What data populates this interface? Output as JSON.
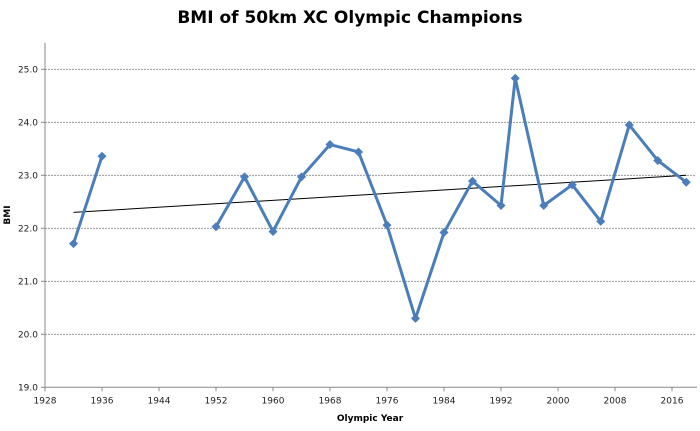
{
  "chart_data": {
    "type": "line",
    "title": "BMI of 50km XC Olympic Champions",
    "xlabel": "Olympic Year",
    "ylabel": "BMI",
    "xlim": [
      1928,
      2020
    ],
    "ylim": [
      19,
      25.5
    ],
    "x_ticks": [
      "1928",
      "1936",
      "1944",
      "1952",
      "1960",
      "1968",
      "1976",
      "1984",
      "1992",
      "2000",
      "2008",
      "2016"
    ],
    "y_ticks": [
      "19.0",
      "20.0",
      "21.0",
      "22.0",
      "23.0",
      "24.0",
      "25.0"
    ],
    "grid": "horizontal dashed",
    "series": [
      {
        "color": "#4a7ebb",
        "marker": "diamond",
        "segments": [
          {
            "x": [
              1932,
              1936
            ],
            "y": [
              21.71,
              23.36
            ]
          },
          {
            "x": [
              1952,
              1956,
              1960,
              1964,
              1968,
              1972,
              1976,
              1980,
              1984,
              1988,
              1992,
              1994,
              1998,
              2002,
              2006,
              2010,
              2014,
              2018
            ],
            "y": [
              22.03,
              22.97,
              21.94,
              22.97,
              23.58,
              23.44,
              22.06,
              20.3,
              21.92,
              22.89,
              22.43,
              24.83,
              22.43,
              22.82,
              22.13,
              23.95,
              23.28,
              22.87
            ]
          }
        ]
      }
    ],
    "trendline": {
      "type": "linear",
      "color": "#000000",
      "x": [
        1932,
        2018
      ],
      "y": [
        22.3,
        23.0
      ]
    }
  }
}
